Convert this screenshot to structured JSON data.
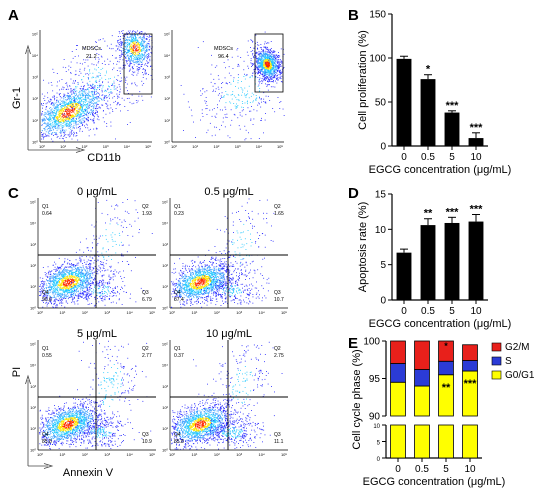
{
  "panels": {
    "A": "A",
    "B": "B",
    "C": "C",
    "D": "D",
    "E": "E"
  },
  "flow_common": {
    "decade_ticks": [
      "10⁰",
      "10¹",
      "10²",
      "10³",
      "10⁴",
      "10⁵"
    ],
    "colors": {
      "low": "#2a2cff",
      "mid": "#25c8ff",
      "high": "#ffe400",
      "peak": "#ff2a00"
    }
  },
  "panel_A": {
    "ylabel": "Gr-1",
    "xlabel": "CD11b",
    "plots": [
      {
        "gate_label": "MDSCs",
        "gate_value": "21.2"
      },
      {
        "gate_label": "MDSCs",
        "gate_value": "96.4"
      }
    ]
  },
  "panel_C": {
    "ylabel": "PI",
    "xlabel": "Annexin V",
    "quadrant_names": [
      "Q1",
      "Q2",
      "Q3",
      "Q4"
    ],
    "plots": [
      {
        "title": "0 μg/mL",
        "q1": "0.64",
        "q2": "1.93",
        "q3": "6.79",
        "q4": "90.6"
      },
      {
        "title": "0.5 μg/mL",
        "q1": "0.23",
        "q2": "1.65",
        "q3": "10.7",
        "q4": "87.4"
      },
      {
        "title": "5 μg/mL",
        "q1": "0.55",
        "q2": "2.77",
        "q3": "10.9",
        "q4": "85.8"
      },
      {
        "title": "10 μg/mL",
        "q1": "0.37",
        "q2": "2.75",
        "q3": "11.1",
        "q4": "85.8"
      }
    ]
  },
  "chart_data": [
    {
      "panel": "B",
      "type": "bar",
      "categories": [
        "0",
        "0.5",
        "5",
        "10"
      ],
      "values": [
        99,
        76,
        38,
        9
      ],
      "errors": [
        3,
        5,
        2,
        6
      ],
      "significance": [
        "",
        "*",
        "***",
        "***"
      ],
      "xlabel": "EGCG concentration (μg/mL)",
      "ylabel": "Cell proliferation (%)",
      "ylim": [
        0,
        150
      ],
      "yticks": [
        "0",
        "50",
        "100",
        "150"
      ]
    },
    {
      "panel": "D",
      "type": "bar",
      "categories": [
        "0",
        "0.5",
        "5",
        "10"
      ],
      "values": [
        6.7,
        10.6,
        10.9,
        11.1
      ],
      "errors": [
        0.5,
        0.9,
        0.8,
        1.0
      ],
      "significance": [
        "",
        "**",
        "***",
        "***"
      ],
      "xlabel": "EGCG concentration (μg/mL)",
      "ylabel": "Apoptosis rate (%)",
      "ylim": [
        0,
        15
      ],
      "yticks": [
        "0",
        "5",
        "10",
        "15"
      ]
    },
    {
      "panel": "E",
      "type": "bar",
      "stacked": true,
      "categories": [
        "0",
        "0.5",
        "5",
        "10"
      ],
      "series": [
        {
          "name": "G0/G1",
          "color": "#ffff00",
          "values": [
            94.5,
            94.0,
            95.5,
            96.0
          ]
        },
        {
          "name": "S",
          "color": "#2b3bd6",
          "values": [
            2.5,
            2.2,
            1.8,
            1.4
          ]
        },
        {
          "name": "G2/M",
          "color": "#e8201b",
          "values": [
            3.0,
            3.8,
            2.7,
            2.1
          ]
        }
      ],
      "significance": [
        "",
        "",
        "**",
        "***"
      ],
      "segment_stars": {
        "G2/M": [
          "",
          "",
          "*",
          ""
        ]
      },
      "xlabel": "EGCG concentration (μg/mL)",
      "ylabel": "Cell cycle phase (%)",
      "axis_break": {
        "lower_max": 10,
        "upper_min": 90
      },
      "yticks_upper": [
        "90",
        "95",
        "100"
      ],
      "yticks_lower": [
        "0",
        "5",
        "10"
      ],
      "legend_position": "right"
    }
  ]
}
